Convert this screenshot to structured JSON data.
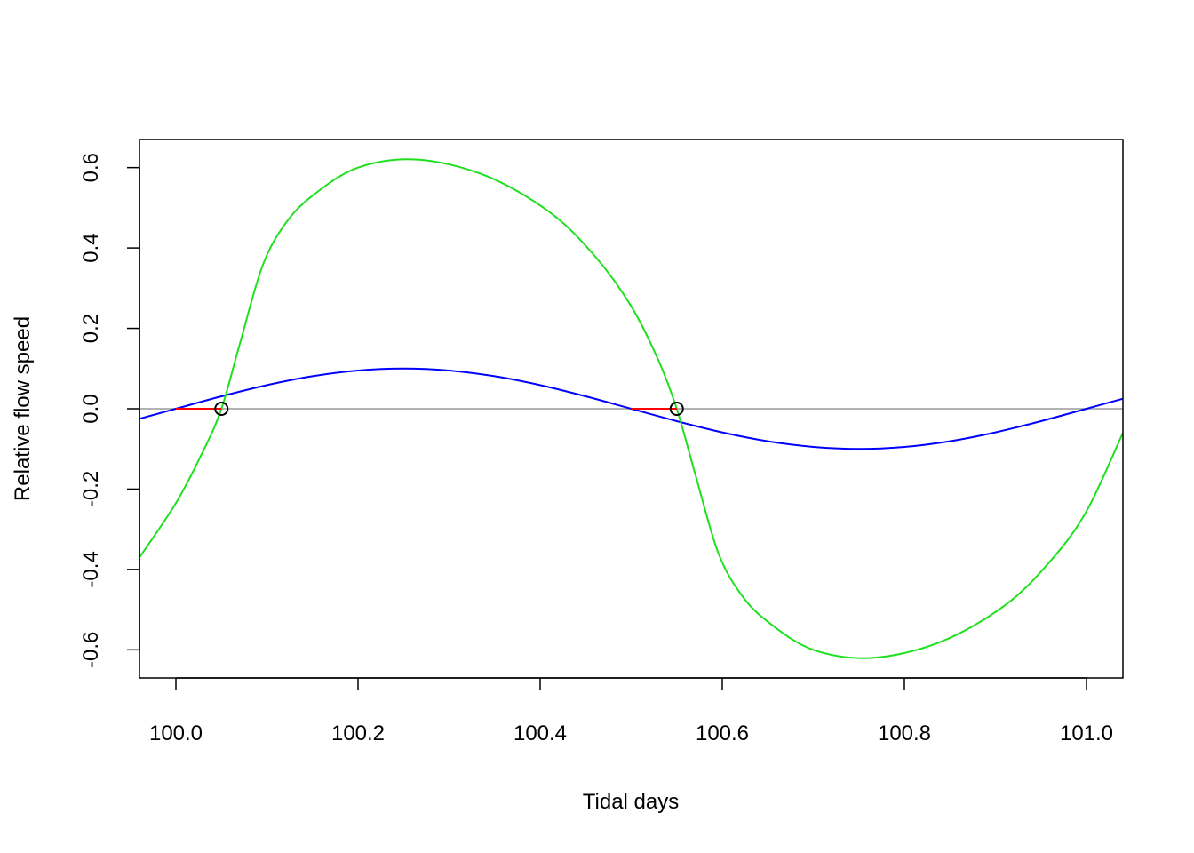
{
  "chart_data": {
    "type": "line",
    "title": "",
    "xlabel": "Tidal days",
    "ylabel": "Relative flow speed",
    "xlim": [
      99.96,
      101.04
    ],
    "ylim": [
      -0.67,
      0.67
    ],
    "grid": false,
    "x_ticks": [
      100.0,
      100.2,
      100.4,
      100.6,
      100.8,
      101.0
    ],
    "x_tick_labels": [
      "100.0",
      "100.2",
      "100.4",
      "100.6",
      "100.8",
      "101.0"
    ],
    "y_ticks": [
      -0.6,
      -0.4,
      -0.2,
      0.0,
      0.2,
      0.4,
      0.6
    ],
    "y_tick_labels": [
      "-0.6",
      "-0.4",
      "-0.2",
      "0.0",
      "0.2",
      "0.4",
      "0.6"
    ],
    "reference_line": {
      "y": 0,
      "color": "#b3b3b3"
    },
    "series": [
      {
        "color": "#0000ff",
        "x": [
          99.96,
          100.0,
          100.05,
          100.1,
          100.15,
          100.2,
          100.25,
          100.3,
          100.35,
          100.4,
          100.45,
          100.5,
          100.55,
          100.6,
          100.65,
          100.7,
          100.75,
          100.8,
          100.85,
          100.9,
          100.95,
          101.0,
          101.04
        ],
        "y": [
          -0.0249,
          0,
          0.0309,
          0.0588,
          0.0809,
          0.0951,
          0.1,
          0.0951,
          0.0809,
          0.0588,
          0.0309,
          0,
          -0.0309,
          -0.0588,
          -0.0809,
          -0.0951,
          -0.1,
          -0.0951,
          -0.0809,
          -0.0588,
          -0.0309,
          0,
          0.0249
        ]
      },
      {
        "color": "#1fe01f",
        "x": [
          99.96,
          100.0,
          100.03,
          100.05,
          100.07,
          100.095,
          100.12,
          100.15,
          100.2,
          100.265,
          100.34,
          100.41,
          100.46,
          100.5,
          100.53,
          100.55,
          100.57,
          100.595,
          100.62,
          100.65,
          100.7,
          100.765,
          100.84,
          100.91,
          100.96,
          101.0,
          101.04
        ],
        "y": [
          -0.37,
          -0.235,
          -0.105,
          0,
          0.16,
          0.355,
          0.46,
          0.53,
          0.6,
          0.62,
          0.58,
          0.49,
          0.38,
          0.255,
          0.12,
          0,
          -0.16,
          -0.355,
          -0.46,
          -0.53,
          -0.6,
          -0.62,
          -0.58,
          -0.49,
          -0.38,
          -0.255,
          -0.06
        ]
      }
    ],
    "segments": [
      {
        "x": [
          100.0,
          100.05
        ],
        "y": [
          0,
          0
        ],
        "color": "#ff0000"
      },
      {
        "x": [
          100.5,
          100.55
        ],
        "y": [
          0,
          0
        ],
        "color": "#ff0000"
      }
    ],
    "points": [
      {
        "x": 100.05,
        "y": 0
      },
      {
        "x": 100.55,
        "y": 0
      }
    ]
  }
}
